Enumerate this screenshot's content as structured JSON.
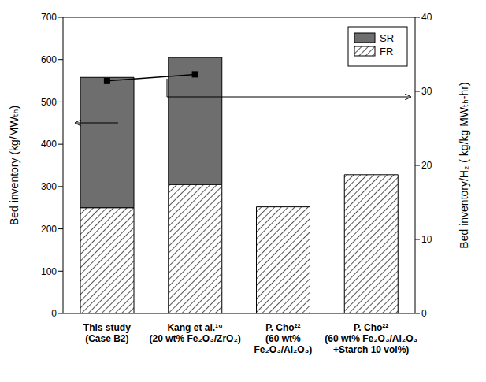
{
  "chart_data": {
    "type": "bar",
    "stacked": true,
    "categories": [
      "This study\n(Case B2)",
      "Kang et al.¹⁹\n(20 wt% Fe₂O₃/ZrO₂)",
      "P. Cho²²\n(60 wt%\nFe₂O₃/Al₂O₃)",
      "P. Cho²²\n(60 wt% Fe₂O₃/Al₂O₃\n+Starch 10 vol%)"
    ],
    "y_label": "Bed inventory (kg/MWₜₕ)",
    "y2_label": "Bed inventory/H₂  ( kg/kg MWₜₕ-hr)",
    "ylim": [
      0,
      700
    ],
    "yticks": [
      0,
      100,
      200,
      300,
      400,
      500,
      600,
      700
    ],
    "y2lim": [
      0,
      40
    ],
    "y2ticks": [
      0,
      10,
      20,
      30,
      40
    ],
    "legend": "upper right",
    "series": [
      {
        "name": "FR",
        "color": "#555555",
        "values": [
          250,
          305,
          252,
          328
        ]
      },
      {
        "name": "SR",
        "color": "#6e6e6e",
        "values": [
          308,
          300,
          null,
          null
        ]
      },
      {
        "type": "line",
        "axis": "y2",
        "color": "#000000",
        "marker": "square",
        "values": [
          31.4,
          32.3,
          null,
          null
        ]
      }
    ]
  }
}
